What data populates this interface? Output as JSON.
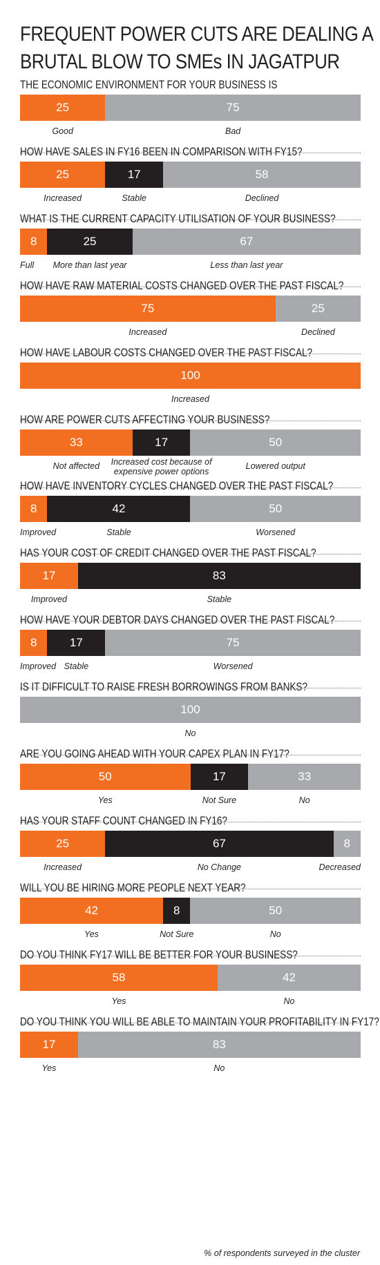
{
  "title_line1": "FREQUENT POWER CUTS ARE DEALING A",
  "title_line2": "BRUTAL BLOW TO SMEs IN JAGATPUR",
  "footnote": "% of respondents surveyed in the cluster",
  "colors": {
    "orange": "#f26f21",
    "black": "#231f20",
    "gray": "#a7a9ac"
  },
  "chart_data": {
    "type": "bar",
    "orientation": "horizontal-stacked-100",
    "unit": "% of respondents surveyed in the cluster",
    "questions": [
      {
        "title": "THE ECONOMIC ENVIRONMENT FOR YOUR BUSINESS IS",
        "segments": [
          {
            "value": 25,
            "label": "Good",
            "color": "orange"
          },
          {
            "value": 75,
            "label": "Bad",
            "color": "gray"
          }
        ]
      },
      {
        "title": "HOW HAVE SALES IN FY16 BEEN IN COMPARISON WITH FY15?",
        "segments": [
          {
            "value": 25,
            "label": "Increased",
            "color": "orange"
          },
          {
            "value": 17,
            "label": "Stable",
            "color": "black"
          },
          {
            "value": 58,
            "label": "Declined",
            "color": "gray"
          }
        ]
      },
      {
        "title": "WHAT IS THE CURRENT CAPACITY UTILISATION OF YOUR BUSINESS?",
        "segments": [
          {
            "value": 8,
            "label": "Full",
            "color": "orange"
          },
          {
            "value": 25,
            "label": "More than last year",
            "color": "black"
          },
          {
            "value": 67,
            "label": "Less than last year",
            "color": "gray"
          }
        ]
      },
      {
        "title": "HOW HAVE RAW MATERIAL COSTS CHANGED OVER THE PAST FISCAL?",
        "segments": [
          {
            "value": 75,
            "label": "Increased",
            "color": "orange"
          },
          {
            "value": 25,
            "label": "Declined",
            "color": "gray"
          }
        ]
      },
      {
        "title": "HOW HAVE LABOUR COSTS CHANGED OVER THE PAST FISCAL?",
        "segments": [
          {
            "value": 100,
            "label": "Increased",
            "color": "orange"
          }
        ]
      },
      {
        "title": "HOW ARE POWER CUTS AFFECTING YOUR BUSINESS?",
        "segments": [
          {
            "value": 33,
            "label": "Not affected",
            "color": "orange"
          },
          {
            "value": 17,
            "label": "Increased cost because of\nexpensive power options",
            "color": "black"
          },
          {
            "value": 50,
            "label": "Lowered output",
            "color": "gray"
          }
        ]
      },
      {
        "title": "HOW HAVE INVENTORY CYCLES CHANGED OVER THE PAST FISCAL?",
        "segments": [
          {
            "value": 8,
            "label": "Improved",
            "color": "orange"
          },
          {
            "value": 42,
            "label": "Stable",
            "color": "black"
          },
          {
            "value": 50,
            "label": "Worsened",
            "color": "gray"
          }
        ]
      },
      {
        "title": "HAS YOUR COST OF CREDIT CHANGED OVER THE PAST FISCAL?",
        "segments": [
          {
            "value": 17,
            "label": "Improved",
            "color": "orange"
          },
          {
            "value": 83,
            "label": "Stable",
            "color": "black"
          }
        ]
      },
      {
        "title": "HOW HAVE YOUR DEBTOR DAYS CHANGED OVER THE PAST FISCAL?",
        "segments": [
          {
            "value": 8,
            "label": "Improved",
            "color": "orange"
          },
          {
            "value": 17,
            "label": "Stable",
            "color": "black"
          },
          {
            "value": 75,
            "label": "Worsened",
            "color": "gray"
          }
        ]
      },
      {
        "title": "IS IT DIFFICULT TO RAISE FRESH BORROWINGS FROM BANKS?",
        "segments": [
          {
            "value": 100,
            "label": "No",
            "color": "gray"
          }
        ]
      },
      {
        "title": "ARE YOU GOING AHEAD WITH YOUR CAPEX PLAN IN FY17?",
        "segments": [
          {
            "value": 50,
            "label": "Yes",
            "color": "orange"
          },
          {
            "value": 17,
            "label": "Not Sure",
            "color": "black"
          },
          {
            "value": 33,
            "label": "No",
            "color": "gray"
          }
        ]
      },
      {
        "title": "HAS YOUR STAFF COUNT CHANGED IN FY16?",
        "segments": [
          {
            "value": 25,
            "label": "Increased",
            "color": "orange"
          },
          {
            "value": 67,
            "label": "No Change",
            "color": "black"
          },
          {
            "value": 8,
            "label": "Decreased",
            "color": "gray"
          }
        ]
      },
      {
        "title": "WILL YOU BE HIRING MORE PEOPLE NEXT YEAR?",
        "segments": [
          {
            "value": 42,
            "label": "Yes",
            "color": "orange"
          },
          {
            "value": 8,
            "label": "Not Sure",
            "color": "black"
          },
          {
            "value": 50,
            "label": "No",
            "color": "gray"
          }
        ]
      },
      {
        "title": "DO YOU THINK FY17 WILL BE BETTER FOR YOUR BUSINESS?",
        "segments": [
          {
            "value": 58,
            "label": "Yes",
            "color": "orange"
          },
          {
            "value": 42,
            "label": "No",
            "color": "gray"
          }
        ]
      },
      {
        "title": "DO YOU THINK YOU WILL BE ABLE TO MAINTAIN YOUR PROFITABILITY IN FY17?",
        "segments": [
          {
            "value": 17,
            "label": "Yes",
            "color": "orange"
          },
          {
            "value": 83,
            "label": "No",
            "color": "gray"
          }
        ]
      }
    ]
  }
}
